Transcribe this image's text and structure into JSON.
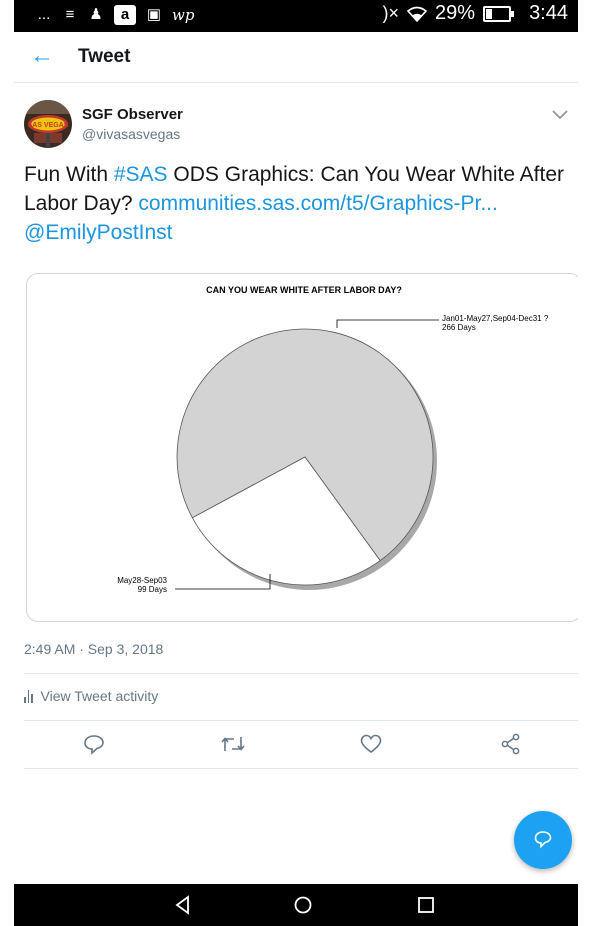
{
  "status_bar": {
    "left_icons": [
      "...",
      "≡",
      "♟",
      "a",
      "▣",
      "wp"
    ],
    "right_icons": [
      "bluetooth-off-icon",
      "wifi-icon"
    ],
    "bt_glyph": ")×",
    "battery": "29%",
    "battery_level": 0.29,
    "time": "3:44"
  },
  "header": {
    "title": "Tweet",
    "back_icon": "arrow-left-icon"
  },
  "author": {
    "name": "SGF Observer",
    "handle": "@vivasasvegas",
    "avatar_sign_text": "SAS VEGAS"
  },
  "tweet": {
    "t1": "Fun With ",
    "hashtag": "#SAS",
    "t2": " ODS Graphics: Can You Wear White After Labor Day? ",
    "url": "communities.sas.com/t5/Graphics-Pr...",
    "mention": "@EmilyPostInst"
  },
  "chart_data": {
    "type": "pie",
    "title": "CAN YOU WEAR WHITE AFTER LABOR DAY?",
    "slices": [
      {
        "label_line1": "Jan01-May27,Sep04-Dec31 ?",
        "label_line2": "266 Days",
        "value": 266,
        "color": "#d3d3d3"
      },
      {
        "label_line1": "May28-Sep03",
        "label_line2": "99 Days",
        "value": 99,
        "color": "#ffffff"
      }
    ]
  },
  "meta": {
    "timestamp": "2:49 AM · Sep 3, 2018",
    "activity": "View Tweet activity"
  },
  "colors": {
    "accent": "#1da1f2",
    "link": "#1b95e0",
    "text": "#14171a",
    "muted": "#657786"
  }
}
